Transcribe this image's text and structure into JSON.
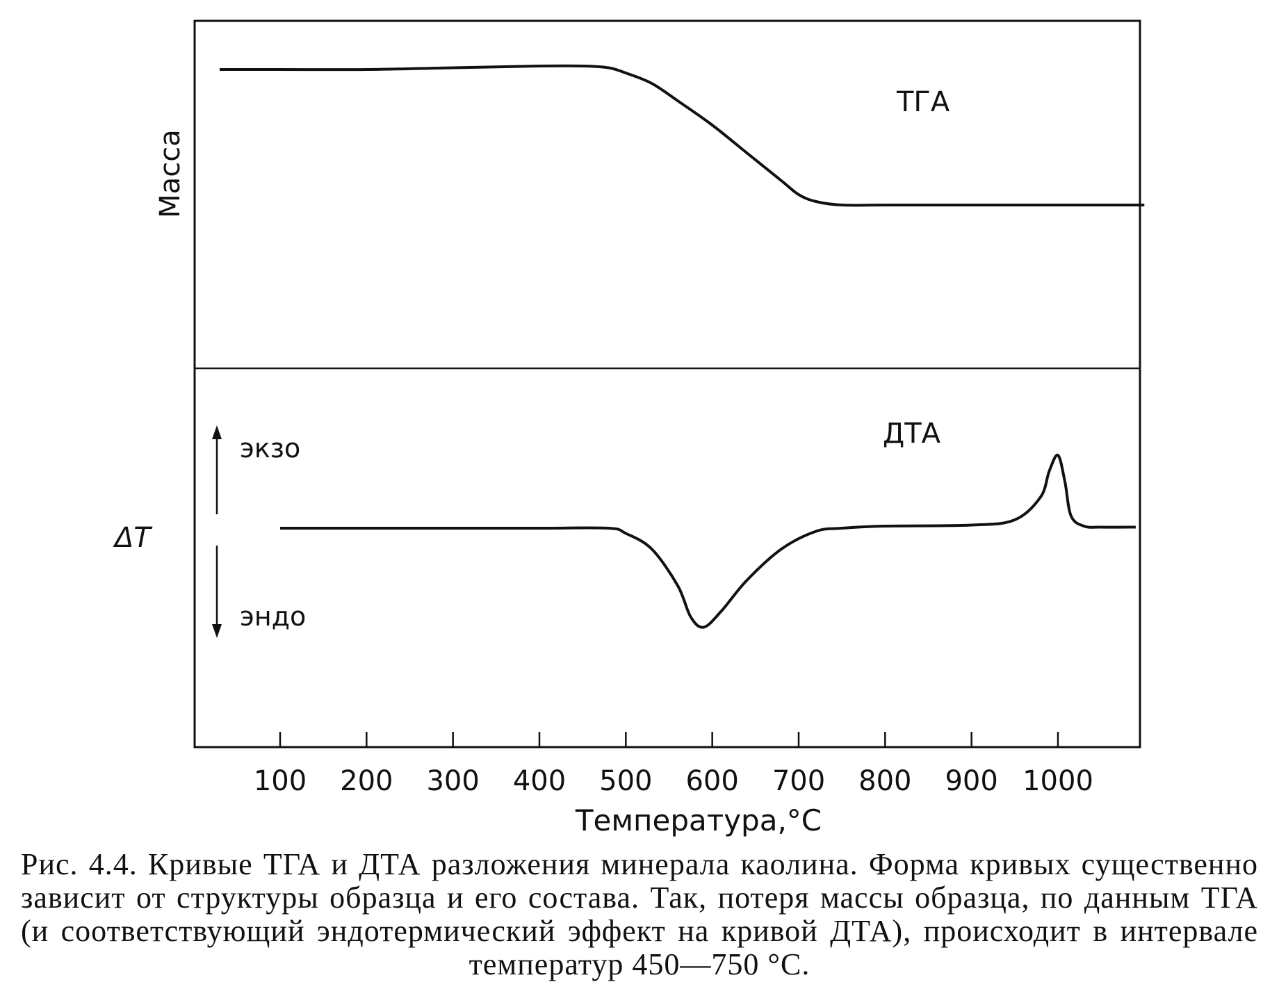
{
  "chart_data": [
    {
      "type": "line",
      "panel": "top",
      "series_label": "ТГА",
      "ylabel": "Масса",
      "xlim": [
        0,
        1100
      ],
      "ylim": [
        0,
        1
      ],
      "x": [
        30,
        100,
        200,
        300,
        400,
        450,
        480,
        500,
        530,
        560,
        600,
        640,
        680,
        700,
        720,
        750,
        800,
        900,
        1000,
        1100
      ],
      "y": [
        0.86,
        0.86,
        0.86,
        0.865,
        0.87,
        0.87,
        0.865,
        0.85,
        0.82,
        0.77,
        0.7,
        0.62,
        0.54,
        0.5,
        0.48,
        0.47,
        0.47,
        0.47,
        0.47,
        0.47
      ]
    },
    {
      "type": "line",
      "panel": "bottom",
      "series_label": "ДТА",
      "ylabel": "ΔT",
      "exo_label": "экзо",
      "endo_label": "эндо",
      "xlabel": "Температура,°С",
      "xticks": [
        100,
        200,
        300,
        400,
        500,
        600,
        700,
        800,
        900,
        1000
      ],
      "xlim": [
        0,
        1100
      ],
      "ylim": [
        -1,
        1
      ],
      "x": [
        100,
        200,
        300,
        400,
        480,
        500,
        530,
        560,
        575,
        590,
        610,
        640,
        680,
        720,
        750,
        800,
        900,
        950,
        980,
        990,
        1000,
        1008,
        1015,
        1030,
        1050,
        1090
      ],
      "y": [
        0,
        0,
        0,
        0,
        0,
        -0.05,
        -0.2,
        -0.55,
        -0.85,
        -0.95,
        -0.8,
        -0.5,
        -0.2,
        -0.03,
        0,
        0.02,
        0.03,
        0.08,
        0.3,
        0.55,
        0.7,
        0.45,
        0.12,
        0.02,
        0.01,
        0.01
      ]
    }
  ],
  "labels": {
    "tga": "ТГА",
    "dta": "ДТА",
    "mass": "Масса",
    "delta_t": "ΔT",
    "exo": "экзо",
    "endo": "эндо",
    "xaxis": "Температура,°С"
  },
  "caption": {
    "figure_number": "Рис. 4.4.",
    "text": "Кривые ТГА и ДТА разложения минерала каолина. Форма кривых существенно зависит от структуры образца и его состава. Так, потеря массы образца, по данным ТГА (и соответствующий эндотермический эффект на кривой ДТА), происходит в интервале температур 450—750 °С."
  }
}
